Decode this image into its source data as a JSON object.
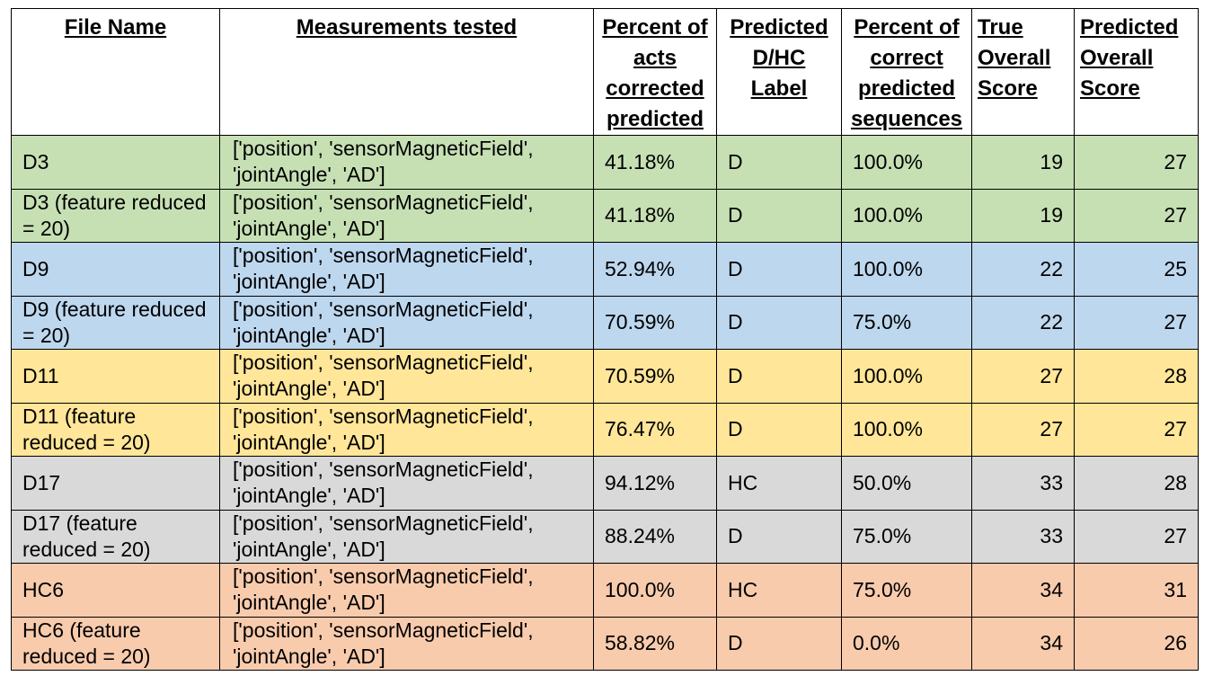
{
  "headers": {
    "file_name": "File Name",
    "measurements": "Measurements tested",
    "percent_acts": "Percent of acts corrected predicted",
    "predicted_label": "Predicted D/HC Label",
    "percent_sequences": "Percent of correct predicted sequences",
    "true_score": "True Overall Score",
    "predicted_score": "Predicted Overall Score"
  },
  "group_colors": {
    "D3": "#c6e0b4",
    "D9": "#bdd7ee",
    "D11": "#ffe699",
    "D17": "#d9d9d9",
    "HC6": "#f8cbad"
  },
  "rows": [
    {
      "file": "D3",
      "measurements": "['position', 'sensorMagneticField', 'jointAngle', 'AD']",
      "percent_acts": "41.18%",
      "label": "D",
      "percent_seq": "100.0%",
      "true_score": "19",
      "pred_score": "27"
    },
    {
      "file": "D3 (feature reduced = 20)",
      "measurements": "['position', 'sensorMagneticField', 'jointAngle', 'AD']",
      "percent_acts": "41.18%",
      "label": "D",
      "percent_seq": "100.0%",
      "true_score": "19",
      "pred_score": "27"
    },
    {
      "file": "D9",
      "measurements": "['position', 'sensorMagneticField', 'jointAngle', 'AD']",
      "percent_acts": "52.94%",
      "label": "D",
      "percent_seq": "100.0%",
      "true_score": "22",
      "pred_score": "25"
    },
    {
      "file": "D9 (feature reduced = 20)",
      "measurements": "['position', 'sensorMagneticField', 'jointAngle', 'AD']",
      "percent_acts": "70.59%",
      "label": "D",
      "percent_seq": "75.0%",
      "true_score": "22",
      "pred_score": "27"
    },
    {
      "file": "D11",
      "measurements": "['position', 'sensorMagneticField', 'jointAngle', 'AD']",
      "percent_acts": "70.59%",
      "label": "D",
      "percent_seq": "100.0%",
      "true_score": "27",
      "pred_score": "28"
    },
    {
      "file": "D11 (feature reduced = 20)",
      "measurements": "['position', 'sensorMagneticField', 'jointAngle', 'AD']",
      "percent_acts": "76.47%",
      "label": "D",
      "percent_seq": "100.0%",
      "true_score": "27",
      "pred_score": "27"
    },
    {
      "file": "D17",
      "measurements": "['position', 'sensorMagneticField', 'jointAngle', 'AD']",
      "percent_acts": "94.12%",
      "label": "HC",
      "percent_seq": "50.0%",
      "true_score": "33",
      "pred_score": "28"
    },
    {
      "file": "D17 (feature reduced = 20)",
      "measurements": "['position', 'sensorMagneticField', 'jointAngle', 'AD']",
      "percent_acts": "88.24%",
      "label": "D",
      "percent_seq": "75.0%",
      "true_score": "33",
      "pred_score": "27"
    },
    {
      "file": "HC6",
      "measurements": "['position', 'sensorMagneticField', 'jointAngle', 'AD']",
      "percent_acts": "100.0%",
      "label": "HC",
      "percent_seq": "75.0%",
      "true_score": "34",
      "pred_score": "31"
    },
    {
      "file": "HC6 (feature reduced = 20)",
      "measurements": "['position', 'sensorMagneticField', 'jointAngle', 'AD']",
      "percent_acts": "58.82%",
      "label": "D",
      "percent_seq": "0.0%",
      "true_score": "34",
      "pred_score": "26"
    }
  ]
}
